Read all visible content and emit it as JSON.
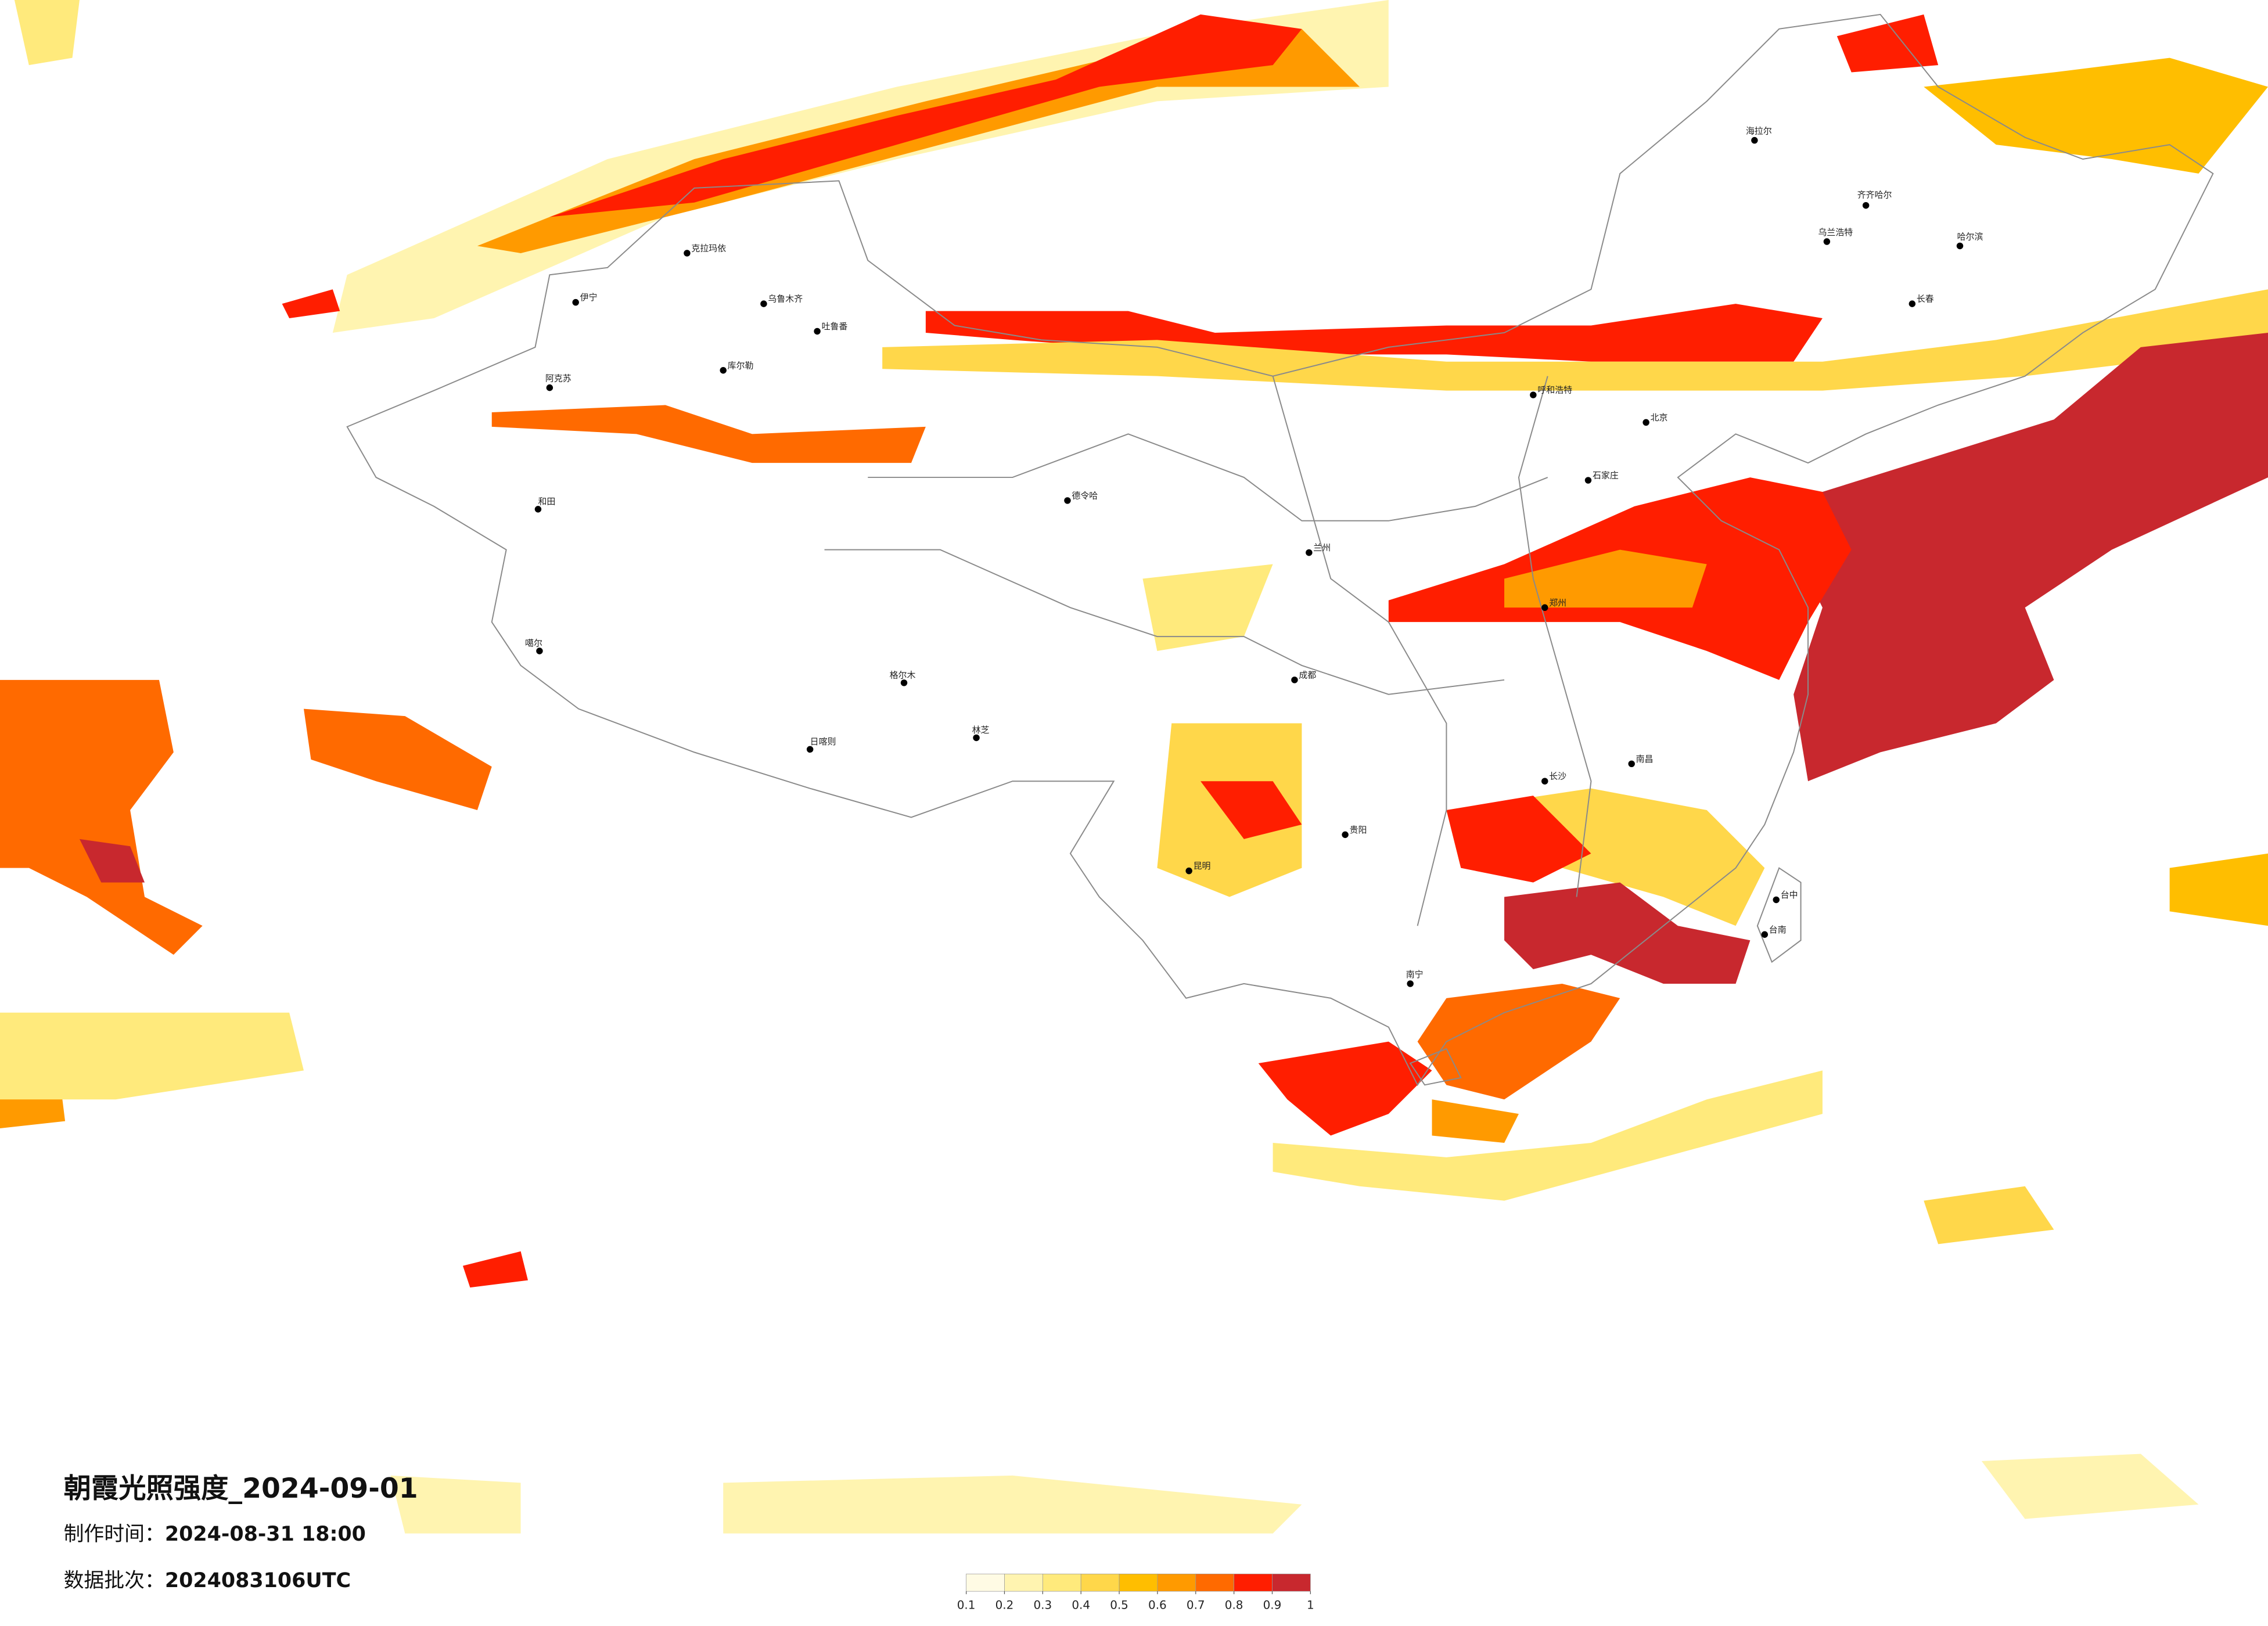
{
  "title": "朝霞光照强度_2024-09-01",
  "production_label": "制作时间：",
  "production_time": "2024-08-31 18:00",
  "batch_label": "数据批次：",
  "batch": "2024083106UTC",
  "legend": {
    "ticks": [
      0.1,
      0.2,
      0.3,
      0.4,
      0.5,
      0.6,
      0.7,
      0.8,
      0.9,
      1
    ],
    "colors": [
      "#fffbe4",
      "#fff4b0",
      "#ffea7c",
      "#ffd74a",
      "#ffbe00",
      "#ff9a00",
      "#ff6a00",
      "#ff1e00",
      "#c8282e"
    ]
  },
  "cities": [
    "克拉玛依",
    "乌鲁木齐",
    "吐鲁番",
    "伊宁",
    "库尔勒",
    "阿克苏",
    "和田",
    "噶尔",
    "日喀则",
    "林芝",
    "格尔木",
    "德令哈",
    "海拉尔",
    "齐齐哈尔",
    "哈尔滨",
    "长春",
    "呼和浩特",
    "北京",
    "石家庄",
    "郑州",
    "南昌",
    "长沙",
    "贵阳",
    "昆明",
    "成都",
    "南宁",
    "台中",
    "台南",
    "兰州",
    "乌兰浩特"
  ]
}
